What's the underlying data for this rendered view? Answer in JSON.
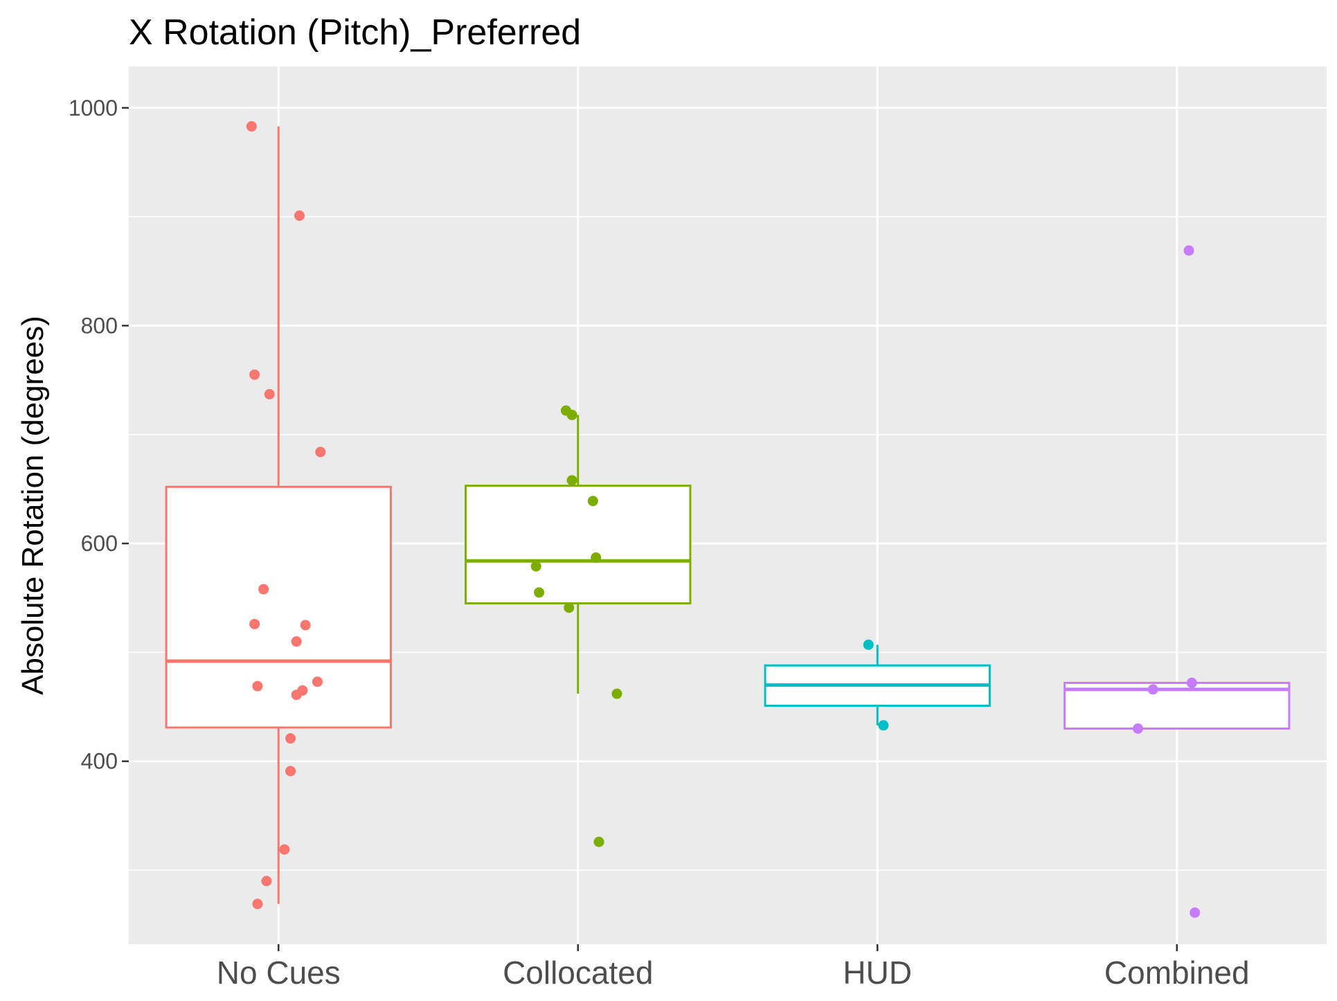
{
  "chart_data": {
    "type": "boxplot",
    "title": "X Rotation (Pitch)_Preferred",
    "xlabel": "",
    "ylabel": "Absolute Rotation (degrees)",
    "ylim": [
      232,
      1038
    ],
    "y_ticks": [
      400,
      600,
      800,
      1000
    ],
    "y_minor_ticks": [
      300,
      500,
      700,
      900
    ],
    "grid": true,
    "legend": "none",
    "background_color": "#ebebeb",
    "categories": [
      "No Cues",
      "Collocated",
      "HUD",
      "Combined"
    ],
    "series": [
      {
        "category": "No Cues",
        "color": "#f8766d",
        "box": {
          "min": 269,
          "q1": 431,
          "median": 492,
          "q3": 652,
          "max": 983
        },
        "points": [
          {
            "jitter": -0.09,
            "y": 983
          },
          {
            "jitter": 0.07,
            "y": 901
          },
          {
            "jitter": -0.08,
            "y": 755
          },
          {
            "jitter": -0.03,
            "y": 737
          },
          {
            "jitter": 0.14,
            "y": 684
          },
          {
            "jitter": -0.05,
            "y": 558
          },
          {
            "jitter": -0.08,
            "y": 526
          },
          {
            "jitter": 0.09,
            "y": 525
          },
          {
            "jitter": 0.06,
            "y": 510
          },
          {
            "jitter": 0.13,
            "y": 473
          },
          {
            "jitter": -0.07,
            "y": 469
          },
          {
            "jitter": 0.08,
            "y": 465
          },
          {
            "jitter": 0.06,
            "y": 461
          },
          {
            "jitter": 0.04,
            "y": 421
          },
          {
            "jitter": 0.04,
            "y": 391
          },
          {
            "jitter": 0.02,
            "y": 319
          },
          {
            "jitter": -0.04,
            "y": 290
          },
          {
            "jitter": -0.07,
            "y": 269
          }
        ]
      },
      {
        "category": "Collocated",
        "color": "#7cae00",
        "box": {
          "min": 462,
          "q1": 545,
          "median": 584,
          "q3": 653,
          "max": 718
        },
        "points": [
          {
            "jitter": -0.04,
            "y": 722
          },
          {
            "jitter": -0.02,
            "y": 718
          },
          {
            "jitter": -0.02,
            "y": 658
          },
          {
            "jitter": 0.05,
            "y": 639
          },
          {
            "jitter": 0.06,
            "y": 587
          },
          {
            "jitter": -0.14,
            "y": 579
          },
          {
            "jitter": -0.13,
            "y": 555
          },
          {
            "jitter": -0.03,
            "y": 541
          },
          {
            "jitter": 0.13,
            "y": 462
          },
          {
            "jitter": 0.07,
            "y": 326
          }
        ]
      },
      {
        "category": "HUD",
        "color": "#00bfc4",
        "box": {
          "min": 433,
          "q1": 451,
          "median": 470,
          "q3": 488,
          "max": 507
        },
        "points": [
          {
            "jitter": -0.03,
            "y": 507
          },
          {
            "jitter": 0.02,
            "y": 433
          }
        ]
      },
      {
        "category": "Combined",
        "color": "#c77cff",
        "box": {
          "min": 430,
          "q1": 430,
          "median": 466,
          "q3": 472,
          "max": 472
        },
        "points": [
          {
            "jitter": 0.04,
            "y": 869
          },
          {
            "jitter": 0.05,
            "y": 472
          },
          {
            "jitter": -0.08,
            "y": 466
          },
          {
            "jitter": -0.13,
            "y": 430
          },
          {
            "jitter": 0.06,
            "y": 261
          }
        ]
      }
    ]
  }
}
